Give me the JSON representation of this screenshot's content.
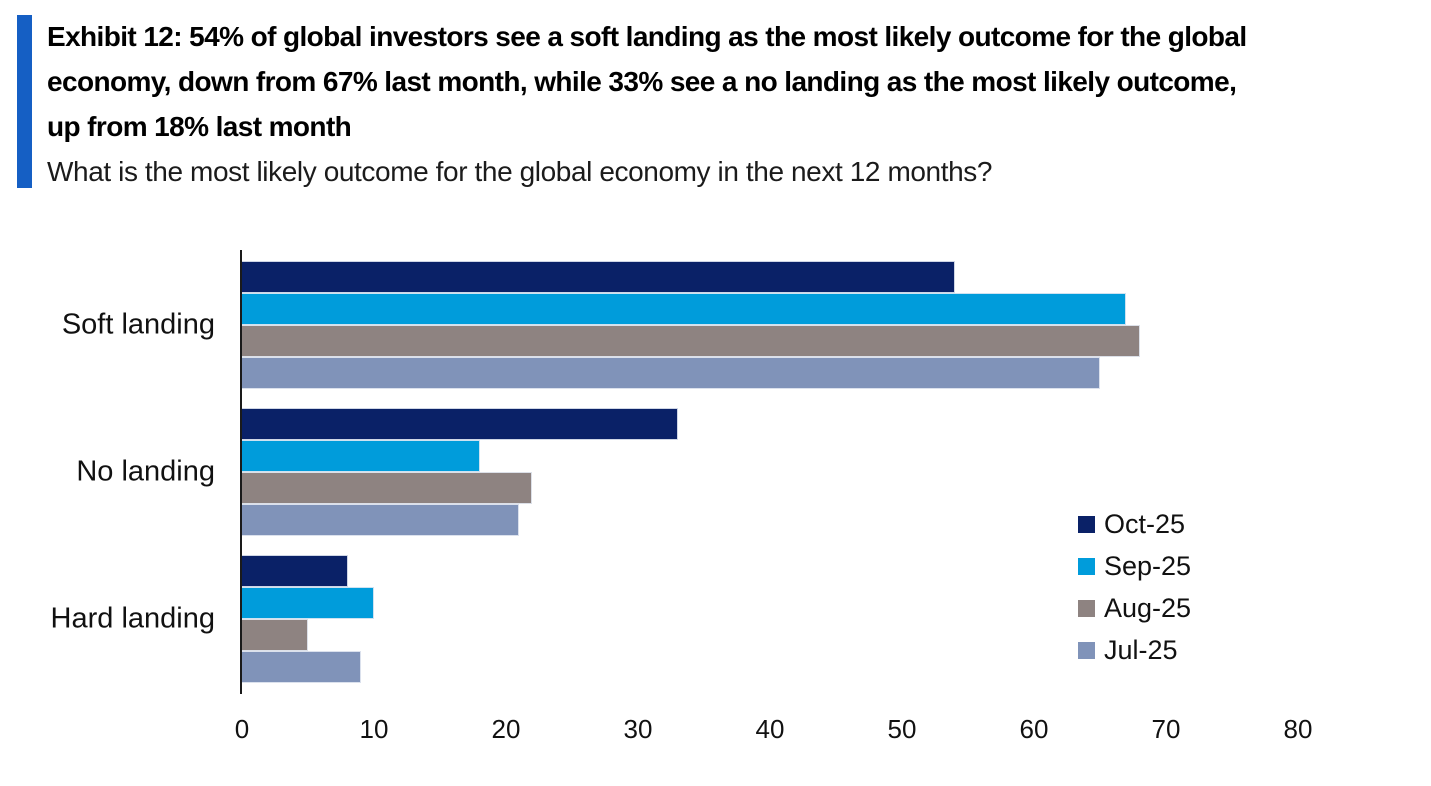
{
  "header": {
    "accent_color": "#155fc4",
    "title_lines": [
      "Exhibit 12: 54% of global investors see a soft landing as the most likely outcome for the global",
      "economy, down from 67% last month, while 33% see a no landing as the most likely outcome,",
      "up from 18% last month"
    ],
    "subtitle": "What is the most likely outcome for the global economy in the next 12 months?"
  },
  "chart_data": {
    "type": "bar",
    "orientation": "horizontal",
    "title": "What is the most likely outcome for the global economy in the next 12 months?",
    "categories": [
      "Soft landing",
      "No landing",
      "Hard landing"
    ],
    "series": [
      {
        "name": "Oct-25",
        "color": "#0a2167",
        "values": [
          54,
          33,
          8
        ]
      },
      {
        "name": "Sep-25",
        "color": "#009cdb",
        "values": [
          67,
          18,
          10
        ]
      },
      {
        "name": "Aug-25",
        "color": "#8e8381",
        "values": [
          68,
          22,
          5
        ]
      },
      {
        "name": "Jul-25",
        "color": "#8093b9",
        "values": [
          65,
          21,
          9
        ]
      }
    ],
    "xlim": [
      0,
      80
    ],
    "x_ticks": [
      "0",
      "10",
      "20",
      "30",
      "40",
      "50",
      "60",
      "70",
      "80"
    ],
    "grid": false,
    "legend_position": "right-center",
    "axis_color": "#1a1a1a"
  }
}
